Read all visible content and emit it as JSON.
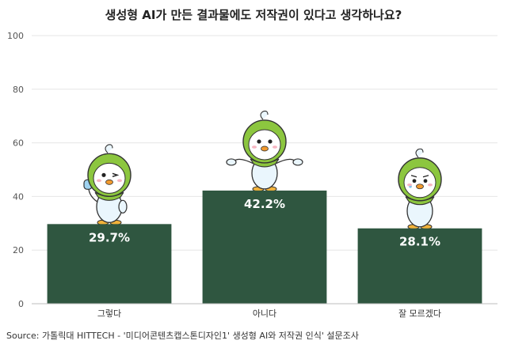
{
  "chart_data": {
    "type": "bar",
    "title": "생성형 AI가 만든 결과물에도 저작권이 있다고 생각하나요?",
    "categories": [
      "그렇다",
      "아니다",
      "잘 모르겠다"
    ],
    "values": [
      29.7,
      42.2,
      28.1
    ],
    "data_labels": [
      "29.7%",
      "42.2%",
      "28.1%"
    ],
    "ylim": [
      0,
      100
    ],
    "yticks": [
      0,
      20,
      40,
      60,
      80,
      100
    ],
    "xlabel": "",
    "ylabel": "",
    "grid": true,
    "bar_color": "#2f5640",
    "source": "Source: 가톨릭대 HITTECH - '미디어콘텐츠캡스톤디자인1' 생성형 AI와 저작권 인식' 설문조사"
  },
  "illustrations": [
    "mascot-thumbs-up",
    "mascot-shrugging",
    "mascot-worried"
  ]
}
